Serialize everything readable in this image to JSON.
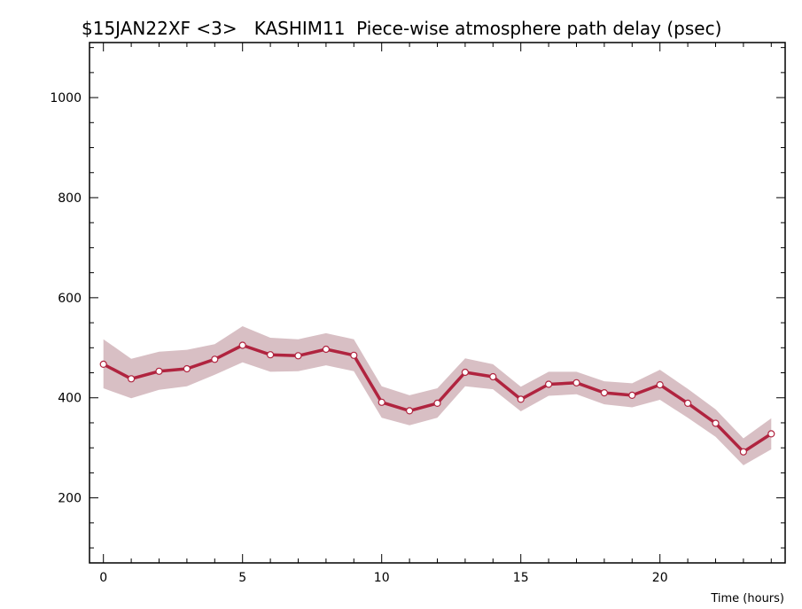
{
  "chart_data": {
    "type": "line",
    "title": "$15JAN22XF <3>   KASHIM11  Piece-wise atmosphere path delay (psec)",
    "xlabel": "Time (hours)",
    "ylabel": "",
    "xlim": [
      -0.5,
      24.5
    ],
    "ylim": [
      70,
      1110
    ],
    "x_ticks": [
      0,
      5,
      10,
      15,
      20
    ],
    "x_tick_labels": [
      "0",
      "5",
      "10",
      "15",
      "20"
    ],
    "y_ticks": [
      200,
      400,
      600,
      800,
      1000
    ],
    "y_tick_labels": [
      "200",
      "400",
      "600",
      "800",
      "1000"
    ],
    "grid": false,
    "colors": {
      "line": "#b0243f",
      "band": "#d8bfc4",
      "marker_fill": "#ffffff"
    },
    "series": [
      {
        "x": [
          0,
          1,
          2,
          3,
          4,
          5,
          6,
          7,
          8,
          9,
          10,
          11,
          12,
          13,
          14,
          15,
          16,
          17,
          18,
          19,
          20,
          21,
          22,
          23,
          24
        ],
        "values": [
          467,
          438,
          453,
          458,
          477,
          505,
          486,
          484,
          497,
          485,
          391,
          374,
          389,
          451,
          442,
          397,
          427,
          430,
          410,
          405,
          426,
          389,
          349,
          292,
          328
        ],
        "band_upper": [
          517,
          478,
          492,
          496,
          507,
          543,
          520,
          517,
          529,
          517,
          423,
          405,
          419,
          479,
          467,
          422,
          452,
          452,
          433,
          429,
          456,
          418,
          377,
          319,
          359
        ],
        "band_lower": [
          419,
          399,
          416,
          423,
          446,
          471,
          452,
          453,
          465,
          453,
          360,
          345,
          360,
          423,
          417,
          373,
          404,
          407,
          387,
          381,
          396,
          360,
          322,
          265,
          297
        ]
      }
    ]
  }
}
